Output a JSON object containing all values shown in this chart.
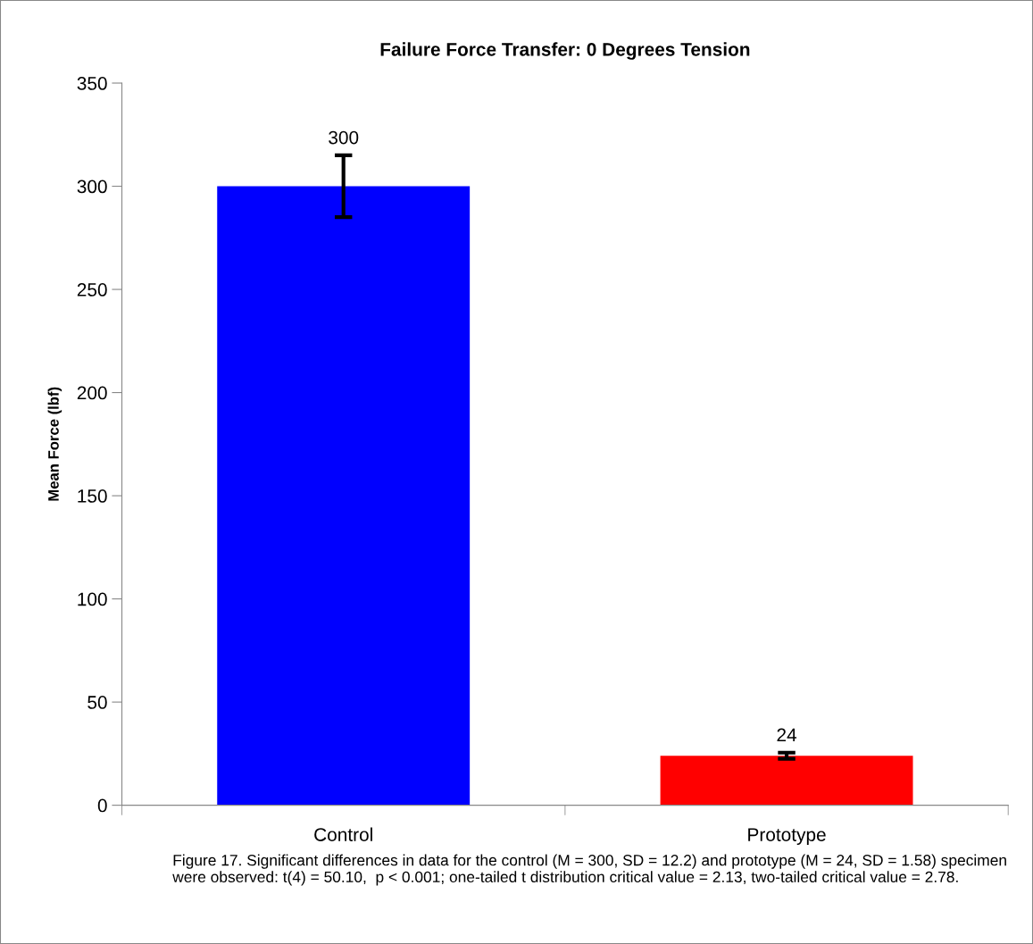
{
  "chart_data": {
    "type": "bar",
    "title": "Failure Force Transfer: 0 Degrees Tension",
    "ylabel": "Mean Force (lbf)",
    "categories": [
      "Control",
      "Prototype"
    ],
    "values": [
      300,
      24
    ],
    "colors": [
      "#0000ff",
      "#ff0000"
    ],
    "errors": [
      15,
      1.5
    ],
    "data_labels": true,
    "ylim": [
      0,
      350
    ],
    "yticks": [
      0,
      50,
      100,
      150,
      200,
      250,
      300,
      350
    ],
    "grid": false,
    "annotations": [
      "Figure 17. Significant differences in data for the control (M = 300, SD = 12.2) and prototype (M = 24, SD = 1.58) specimen were observed: t(4) = 50.10,  p < 0.001; one-tailed t distribution critical value = 2.13, two-tailed critical value = 2.78."
    ]
  }
}
